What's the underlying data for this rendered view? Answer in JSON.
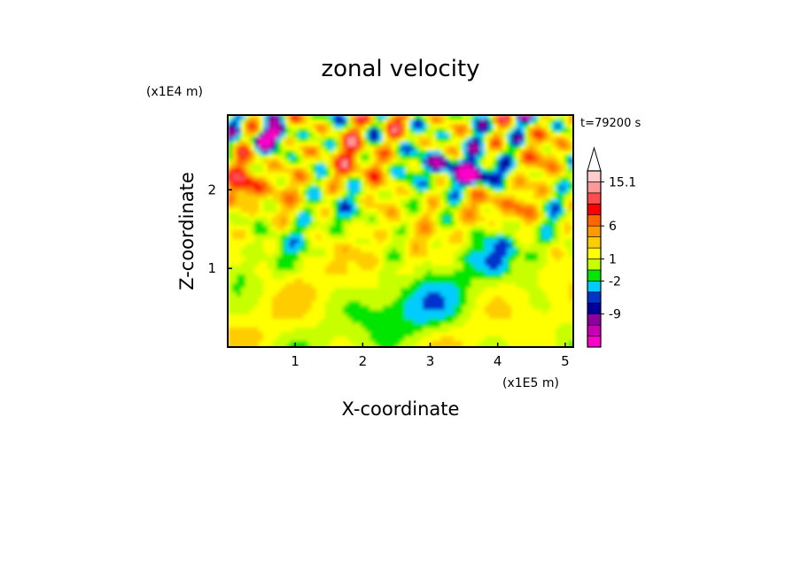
{
  "chart_data": {
    "type": "heatmap",
    "title": "zonal velocity",
    "time_label": "t=79200 s",
    "xlabel": "X-coordinate",
    "ylabel": "Z-coordinate",
    "x_unit": "(x1E5 m)",
    "y_unit": "(x1E4 m)",
    "xlim": [
      0,
      5.12
    ],
    "ylim": [
      0,
      2.95
    ],
    "x_ticks": [
      "1",
      "2",
      "3",
      "4",
      "5"
    ],
    "y_ticks": [
      "1",
      "2"
    ],
    "colorbar": {
      "levels_printed": [
        "15.1",
        "6",
        "1",
        "-2",
        "-9"
      ],
      "colors": [
        "#ff00c8",
        "#c800b4",
        "#8c009f",
        "#000099",
        "#0033cc",
        "#00ccff",
        "#00e600",
        "#c8ff00",
        "#ffff00",
        "#ffcc00",
        "#ff9900",
        "#ff6600",
        "#ff0000",
        "#ff4d4d",
        "#ff9999",
        "#ffcccc"
      ],
      "extend": "max"
    }
  }
}
